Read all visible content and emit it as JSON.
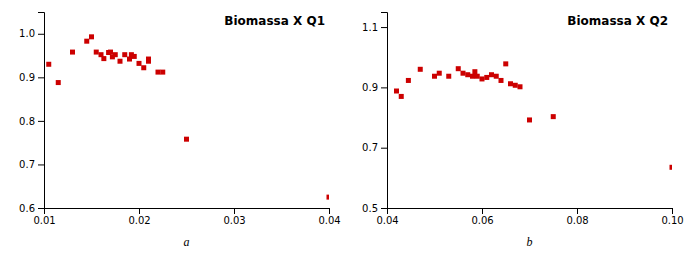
{
  "chart_data": [
    {
      "type": "scatter",
      "title": "Biomassa X Q1",
      "xlabel": "a",
      "xlim": [
        0.01,
        0.04
      ],
      "ylim": [
        0.6,
        1.05
      ],
      "xticks": [
        0.01,
        0.02,
        0.03,
        0.04
      ],
      "yticks": [
        0.6,
        0.7,
        0.8,
        0.9,
        {
          "value": 1.0,
          "label": "1.0"
        }
      ],
      "x": [
        0.0105,
        0.0115,
        0.013,
        0.0145,
        0.015,
        0.0155,
        0.016,
        0.0163,
        0.0168,
        0.017,
        0.0172,
        0.0175,
        0.018,
        0.0185,
        0.019,
        0.0192,
        0.0195,
        0.02,
        0.0205,
        0.021,
        0.021,
        0.022,
        0.0225,
        0.025,
        0.04
      ],
      "values": [
        0.93,
        0.888,
        0.958,
        0.983,
        0.993,
        0.958,
        0.952,
        0.943,
        0.957,
        0.958,
        0.947,
        0.952,
        0.937,
        0.952,
        0.942,
        0.952,
        0.948,
        0.932,
        0.922,
        0.942,
        0.937,
        0.912,
        0.912,
        0.758,
        0.625
      ],
      "color": "#cc0000",
      "marker": "square"
    },
    {
      "type": "scatter",
      "title": "Biomassa X Q2",
      "xlabel": "b",
      "xlim": [
        0.04,
        0.1
      ],
      "ylim": [
        0.5,
        1.15
      ],
      "xticks": [
        0.04,
        0.06,
        0.08,
        {
          "value": 0.1,
          "label": "0.10"
        }
      ],
      "yticks": [
        0.5,
        0.7,
        0.9,
        1.1
      ],
      "x": [
        0.042,
        0.043,
        0.0445,
        0.047,
        0.05,
        0.051,
        0.053,
        0.055,
        0.056,
        0.057,
        0.058,
        0.0585,
        0.059,
        0.06,
        0.061,
        0.062,
        0.063,
        0.064,
        0.065,
        0.066,
        0.067,
        0.068,
        0.07,
        0.075,
        0.1
      ],
      "values": [
        0.888,
        0.87,
        0.923,
        0.96,
        0.937,
        0.947,
        0.937,
        0.962,
        0.947,
        0.942,
        0.937,
        0.952,
        0.937,
        0.928,
        0.933,
        0.942,
        0.937,
        0.923,
        0.978,
        0.912,
        0.907,
        0.902,
        0.792,
        0.803,
        0.635
      ],
      "color": "#cc0000",
      "marker": "square"
    }
  ]
}
